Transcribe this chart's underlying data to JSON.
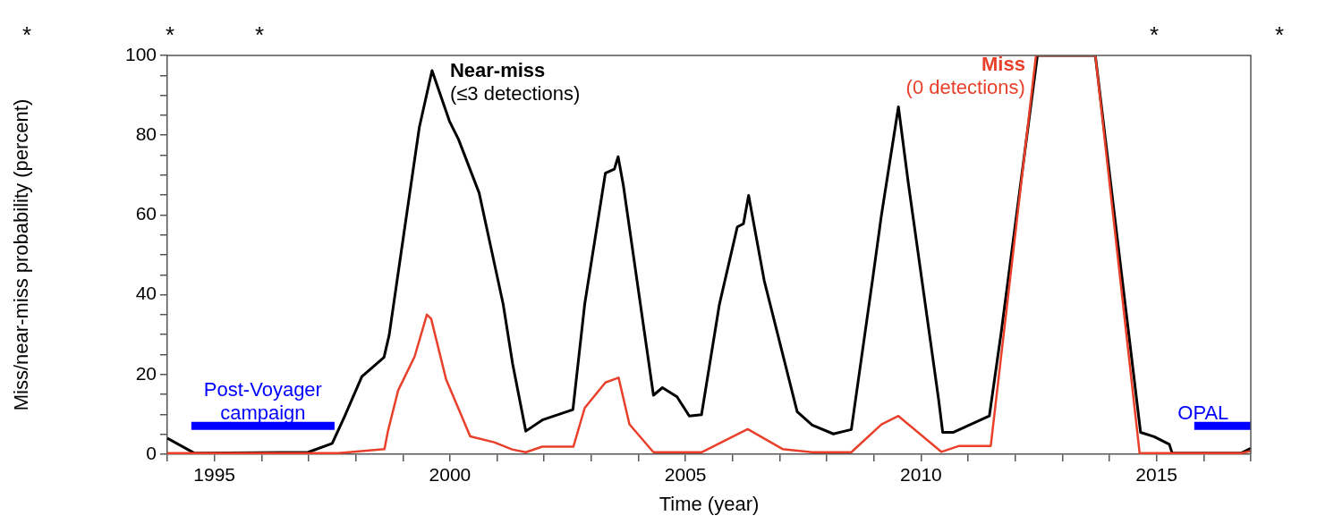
{
  "chart_data": {
    "type": "line",
    "xlabel": "Time (year)",
    "ylabel": "Miss/near-miss probability (percent)",
    "xlim": [
      1994,
      2017
    ],
    "ylim": [
      0,
      100
    ],
    "xticks": [
      {
        "value": 1994,
        "label": null
      },
      1995,
      {
        "value": 1996,
        "label": null
      },
      {
        "value": 1997,
        "label": null
      },
      {
        "value": 1998,
        "label": null
      },
      {
        "value": 1999,
        "label": null
      },
      2000,
      {
        "value": 2001,
        "label": null
      },
      {
        "value": 2002,
        "label": null
      },
      {
        "value": 2003,
        "label": null
      },
      {
        "value": 2004,
        "label": null
      },
      2005,
      {
        "value": 2006,
        "label": null
      },
      {
        "value": 2007,
        "label": null
      },
      {
        "value": 2008,
        "label": null
      },
      {
        "value": 2009,
        "label": null
      },
      2010,
      {
        "value": 2011,
        "label": null
      },
      {
        "value": 2012,
        "label": null
      },
      {
        "value": 2013,
        "label": null
      },
      {
        "value": 2014,
        "label": null
      },
      2015,
      {
        "value": 2016,
        "label": null
      },
      {
        "value": 2017,
        "label": null
      }
    ],
    "yticks": [
      0,
      {
        "value": 5,
        "label": null
      },
      {
        "value": 10,
        "label": null
      },
      {
        "value": 15,
        "label": null
      },
      20,
      {
        "value": 25,
        "label": null
      },
      {
        "value": 30,
        "label": null
      },
      {
        "value": 35,
        "label": null
      },
      40,
      {
        "value": 45,
        "label": null
      },
      {
        "value": 50,
        "label": null
      },
      {
        "value": 55,
        "label": null
      },
      60,
      {
        "value": 65,
        "label": null
      },
      {
        "value": 70,
        "label": null
      },
      {
        "value": 75,
        "label": null
      },
      80,
      {
        "value": 85,
        "label": null
      },
      {
        "value": 90,
        "label": null
      },
      {
        "value": 95,
        "label": null
      },
      100
    ],
    "line_style": "solid",
    "annotations": [
      "*",
      "*",
      "*",
      "*",
      "*"
    ],
    "series": [
      {
        "name": "Near-miss (≤3 detections)",
        "color": "#000000",
        "x": [
          1994.0,
          1994.57,
          1996.99,
          1997.5,
          1997.76,
          1998.13,
          1998.6,
          1998.71,
          1999.03,
          1999.35,
          1999.62,
          1999.99,
          2000.18,
          2000.62,
          2001.13,
          2001.33,
          2001.61,
          2001.96,
          2002.61,
          2002.86,
          2003.3,
          2003.49,
          2003.57,
          2003.68,
          2004.32,
          2004.51,
          2004.82,
          2005.08,
          2005.34,
          2005.72,
          2006.1,
          2006.23,
          2006.34,
          2006.67,
          2007.37,
          2007.69,
          2008.14,
          2008.52,
          2008.97,
          2009.16,
          2009.52,
          2009.73,
          2010.37,
          2010.46,
          2010.69,
          2011.45,
          2011.7,
          2012.47,
          2013.7,
          2014.66,
          2014.95,
          2015.27,
          2015.33,
          2016.8,
          2017.0
        ],
        "values": [
          4.0,
          0.3,
          0.5,
          2.7,
          9.4,
          19.5,
          24.3,
          29.9,
          56,
          82,
          96.2,
          83.5,
          79,
          65.5,
          37.6,
          22.7,
          5.8,
          8.6,
          11.2,
          37.6,
          70.5,
          71.5,
          74.6,
          67.5,
          14.8,
          16.7,
          14.4,
          9.6,
          9.9,
          37.6,
          57,
          57.8,
          64.9,
          43.6,
          10.7,
          7.3,
          5.1,
          6.2,
          43.7,
          60,
          87.1,
          68,
          14.0,
          5.5,
          5.5,
          9.6,
          30.4,
          100,
          100,
          5.5,
          4.4,
          2.5,
          0.3,
          0.3,
          1.5
        ]
      },
      {
        "name": "Miss (0 detections)",
        "color": "#e8402a",
        "x": [
          1994.0,
          1997.63,
          1998.61,
          1998.68,
          1998.9,
          1999.25,
          1999.51,
          1999.6,
          1999.92,
          2000.43,
          2000.94,
          2001.32,
          2001.61,
          2001.96,
          2002.62,
          2002.86,
          2003.3,
          2003.58,
          2003.81,
          2004.32,
          2005.34,
          2006.32,
          2007.06,
          2007.69,
          2008.52,
          2009.16,
          2009.52,
          2010.43,
          2010.81,
          2011.48,
          2012.44,
          2013.7,
          2014.64,
          2016.8,
          2017.0
        ],
        "values": [
          0.3,
          0.3,
          1.3,
          5.6,
          16,
          24.5,
          35,
          34,
          18.7,
          4.5,
          3.0,
          1.2,
          0.5,
          1.9,
          1.9,
          11.6,
          18,
          19.2,
          7.5,
          0.5,
          0.5,
          6.3,
          1.3,
          0.5,
          0.5,
          7.5,
          9.6,
          0.6,
          2.1,
          2.1,
          100,
          100,
          0.3,
          0.3,
          0.8
        ]
      },
      {
        "name": "Post-Voyager campaign",
        "color": "#0000ff",
        "x": [
          1994.51,
          1997.55
        ],
        "values": [
          7.1,
          7.1
        ]
      },
      {
        "name": "OPAL",
        "color": "#0000ff",
        "x": [
          2015.8,
          2017.0
        ],
        "values": [
          7.1,
          7.1
        ]
      }
    ]
  }
}
